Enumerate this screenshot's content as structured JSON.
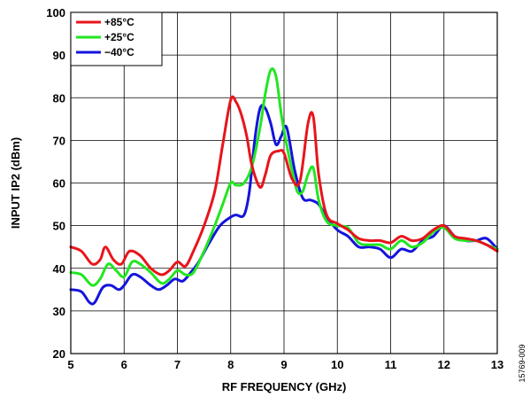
{
  "chart_data": {
    "type": "line",
    "title": "",
    "xlabel": "RF FREQUENCY (GHz)",
    "ylabel": "INPUT IP2 (dBm)",
    "xlim": [
      5,
      13
    ],
    "ylim": [
      20,
      100
    ],
    "xticks": [
      5,
      6,
      7,
      8,
      9,
      10,
      11,
      12,
      13
    ],
    "yticks": [
      20,
      30,
      40,
      50,
      60,
      70,
      80,
      90,
      100
    ],
    "grid": true,
    "legend_position": "top-left",
    "figure_id": "15769-009",
    "series": [
      {
        "name": "+85°C",
        "color": "#e8141b",
        "x": [
          5.0,
          5.2,
          5.4,
          5.55,
          5.65,
          5.8,
          5.95,
          6.1,
          6.3,
          6.5,
          6.7,
          6.85,
          7.0,
          7.15,
          7.3,
          7.5,
          7.7,
          7.85,
          8.0,
          8.1,
          8.2,
          8.3,
          8.4,
          8.55,
          8.65,
          8.75,
          8.9,
          9.0,
          9.15,
          9.3,
          9.45,
          9.55,
          9.65,
          9.8,
          10.0,
          10.2,
          10.4,
          10.6,
          10.8,
          11.0,
          11.2,
          11.4,
          11.6,
          11.8,
          12.0,
          12.2,
          12.4,
          12.6,
          12.8,
          13.0
        ],
        "y": [
          45,
          44,
          41,
          42,
          45,
          42,
          41,
          44,
          43,
          40,
          38.5,
          39.5,
          41.5,
          40.5,
          44,
          50,
          58,
          69,
          79.5,
          79,
          76,
          71,
          64,
          59,
          62,
          66.5,
          67.5,
          67,
          61,
          60.5,
          74,
          75.5,
          62,
          52.5,
          50.5,
          49,
          47,
          46.5,
          46.5,
          46,
          47.5,
          46.5,
          47,
          49,
          50,
          47.5,
          47,
          46.5,
          45.5,
          44
        ]
      },
      {
        "name": "+25°C",
        "color": "#22e621",
        "x": [
          5.0,
          5.2,
          5.4,
          5.55,
          5.7,
          5.85,
          6.0,
          6.15,
          6.3,
          6.5,
          6.7,
          6.85,
          7.0,
          7.15,
          7.3,
          7.5,
          7.7,
          7.85,
          8.0,
          8.1,
          8.25,
          8.4,
          8.55,
          8.65,
          8.75,
          8.85,
          8.95,
          9.05,
          9.15,
          9.25,
          9.35,
          9.45,
          9.55,
          9.65,
          9.8,
          10.0,
          10.2,
          10.4,
          10.6,
          10.8,
          11.0,
          11.2,
          11.4,
          11.6,
          11.8,
          12.0,
          12.2,
          12.4,
          12.6,
          12.8,
          13.0
        ],
        "y": [
          39,
          38.5,
          36,
          37.5,
          41,
          39.5,
          38,
          41.5,
          41,
          39,
          36.5,
          37.5,
          39.5,
          38.5,
          39,
          44,
          50,
          55,
          60,
          59.5,
          60,
          64,
          73,
          81,
          86.5,
          85,
          76,
          69,
          63,
          58,
          58,
          62,
          63.5,
          56,
          51,
          50,
          49.5,
          46,
          45.5,
          45.5,
          44.5,
          46.5,
          45,
          46,
          48.5,
          49.5,
          47,
          46.5,
          46.5,
          45.5,
          44.5
        ]
      },
      {
        "name": "−40°C",
        "color": "#1414dc",
        "x": [
          5.0,
          5.2,
          5.35,
          5.45,
          5.6,
          5.75,
          5.9,
          6.0,
          6.15,
          6.3,
          6.5,
          6.65,
          6.8,
          6.95,
          7.1,
          7.25,
          7.4,
          7.6,
          7.8,
          8.0,
          8.1,
          8.25,
          8.35,
          8.45,
          8.55,
          8.65,
          8.75,
          8.85,
          8.95,
          9.05,
          9.2,
          9.35,
          9.5,
          9.65,
          9.8,
          10.0,
          10.2,
          10.4,
          10.6,
          10.8,
          11.0,
          11.2,
          11.4,
          11.6,
          11.8,
          12.0,
          12.2,
          12.4,
          12.6,
          12.8,
          13.0
        ],
        "y": [
          35,
          34.5,
          32,
          32,
          35.5,
          36,
          35,
          36,
          38.5,
          38,
          36,
          35,
          36,
          37.5,
          37,
          39,
          41.5,
          46,
          50,
          52,
          52.5,
          52.5,
          58,
          70,
          77.5,
          77.5,
          74,
          69,
          71,
          73,
          63,
          56.5,
          56,
          55,
          52,
          49,
          47.5,
          45,
          45,
          44.5,
          42.5,
          44.5,
          44,
          46.5,
          47.5,
          50,
          47.5,
          46.5,
          46.5,
          47,
          44.5
        ]
      }
    ]
  }
}
